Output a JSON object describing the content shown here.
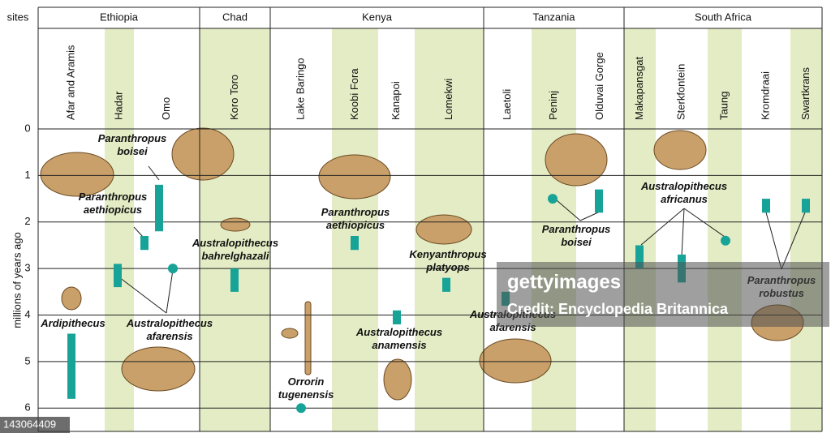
{
  "chart_data": {
    "type": "range",
    "corner_label": "sites",
    "y_label": "millions of years ago",
    "ylim": [
      0,
      6.5
    ],
    "yticks": [
      0,
      1,
      2,
      3,
      4,
      5,
      6
    ],
    "color": "#17a398",
    "shade_color": "#e3ecc4",
    "countries": [
      {
        "name": "Ethiopia",
        "sites": [
          {
            "name": "Afar and Aramis",
            "shaded": false
          },
          {
            "name": "Hadar",
            "shaded": true
          },
          {
            "name": "Omo",
            "shaded": false
          }
        ]
      },
      {
        "name": "Chad",
        "sites": [
          {
            "name": "Koro Toro",
            "shaded": true
          }
        ]
      },
      {
        "name": "Kenya",
        "sites": [
          {
            "name": "Lake Baringo",
            "shaded": false
          },
          {
            "name": "Koobi Fora",
            "shaded": true
          },
          {
            "name": "Kanapoi",
            "shaded": false
          },
          {
            "name": "Lomekwi",
            "shaded": true
          }
        ]
      },
      {
        "name": "Tanzania",
        "sites": [
          {
            "name": "Laetoli",
            "shaded": false
          },
          {
            "name": "Peninj",
            "shaded": true
          },
          {
            "name": "Olduvai Gorge",
            "shaded": false
          }
        ]
      },
      {
        "name": "South Africa",
        "sites": [
          {
            "name": "Makapansgat",
            "shaded": true
          },
          {
            "name": "Sterkfontein",
            "shaded": false
          },
          {
            "name": "Taung",
            "shaded": true
          },
          {
            "name": "Kromdraai",
            "shaded": false
          },
          {
            "name": "Swartkrans",
            "shaded": true
          }
        ]
      }
    ],
    "species": [
      {
        "label": [
          "Paranthropus",
          "boisei"
        ],
        "finds": [
          {
            "site": "Omo",
            "values": [
              1.2,
              2.2
            ]
          }
        ]
      },
      {
        "label": [
          "Paranthropus",
          "aethiopicus"
        ],
        "finds": [
          {
            "site": "Omo",
            "values": [
              2.3,
              2.6
            ]
          }
        ]
      },
      {
        "label": [
          "Australopithecus",
          "afarensis"
        ],
        "finds": [
          {
            "site": "Hadar",
            "values": [
              2.9,
              3.4
            ]
          },
          {
            "site": "Omo",
            "value": 3.0
          }
        ]
      },
      {
        "label": [
          "Ardipithecus"
        ],
        "finds": [
          {
            "site": "Afar and Aramis",
            "values": [
              4.4,
              5.8
            ]
          }
        ]
      },
      {
        "label": [
          "Australopithecus",
          "bahrelghazali"
        ],
        "finds": [
          {
            "site": "Koro Toro",
            "values": [
              3.0,
              3.5
            ]
          }
        ]
      },
      {
        "label": [
          "Orrorin",
          "tugenensis"
        ],
        "finds": [
          {
            "site": "Lake Baringo",
            "value": 6.0
          }
        ]
      },
      {
        "label": [
          "Paranthropus",
          "aethiopicus"
        ],
        "finds": [
          {
            "site": "Koobi Fora",
            "values": [
              2.3,
              2.6
            ]
          }
        ]
      },
      {
        "label": [
          "Australopithecus",
          "anamensis"
        ],
        "finds": [
          {
            "site": "Kanapoi",
            "values": [
              3.9,
              4.2
            ]
          }
        ]
      },
      {
        "label": [
          "Kenyanthropus",
          "platyops"
        ],
        "finds": [
          {
            "site": "Lomekwi",
            "values": [
              3.2,
              3.5
            ]
          }
        ]
      },
      {
        "label": [
          "Australopithecus",
          "afarensis"
        ],
        "finds": [
          {
            "site": "Laetoli",
            "values": [
              3.5,
              3.8
            ]
          }
        ]
      },
      {
        "label": [
          "Paranthropus",
          "boisei"
        ],
        "finds": [
          {
            "site": "Peninj",
            "value": 1.5
          },
          {
            "site": "Olduvai Gorge",
            "values": [
              1.3,
              1.8
            ]
          }
        ]
      },
      {
        "label": [
          "Australopithecus",
          "africanus"
        ],
        "finds": [
          {
            "site": "Makapansgat",
            "values": [
              2.5,
              3.0
            ]
          },
          {
            "site": "Sterkfontein",
            "values": [
              2.7,
              3.3
            ]
          },
          {
            "site": "Taung",
            "value": 2.4
          }
        ]
      },
      {
        "label": [
          "Paranthropus",
          "robustus"
        ],
        "finds": [
          {
            "site": "Kromdraai",
            "values": [
              1.5,
              1.8
            ]
          },
          {
            "site": "Swartkrans",
            "values": [
              1.5,
              1.8
            ]
          }
        ]
      }
    ]
  },
  "watermark": {
    "brand": "gettyimages",
    "credit": "Credit: Encyclopedia Britannica",
    "id": "143064409"
  }
}
